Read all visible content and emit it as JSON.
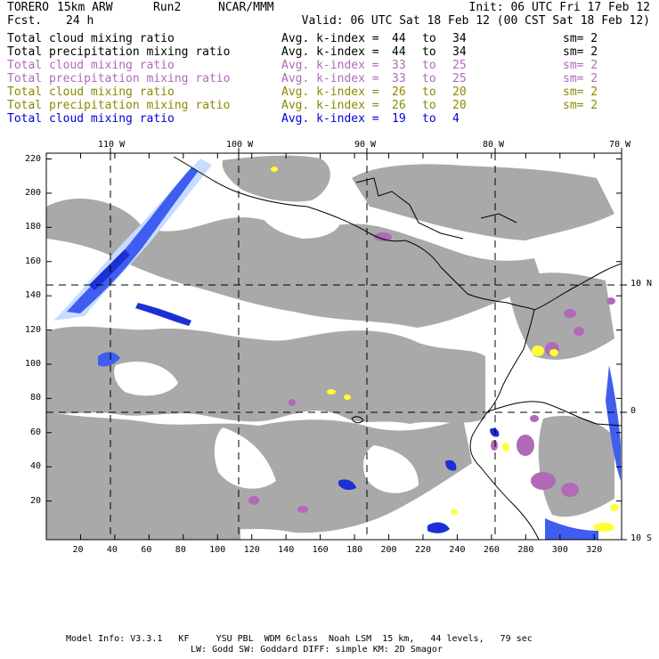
{
  "header": {
    "model": "TORERO",
    "resolution": "15km ARW",
    "run": "Run2",
    "org": "NCAR/MMM",
    "init": "Init: 06 UTC Fri 17 Feb 12",
    "fcst_label": "Fcst.",
    "fcst_value": "24 h",
    "valid": "Valid: 06 UTC Sat 18 Feb 12 (00 CST Sat 18 Feb 12)"
  },
  "legend": [
    {
      "name": "Total cloud mixing ratio",
      "label": "Avg. k-index =",
      "from": "44",
      "to_word": "to",
      "to": "34",
      "sm": "sm= 2",
      "color": "#000000"
    },
    {
      "name": "Total precipitation mixing ratio",
      "label": "Avg. k-index =",
      "from": "44",
      "to_word": "to",
      "to": "34",
      "sm": "sm= 2",
      "color": "#000000"
    },
    {
      "name": "Total cloud mixing ratio",
      "label": "Avg. k-index =",
      "from": "33",
      "to_word": "to",
      "to": "25",
      "sm": "sm= 2",
      "color": "#b06ab8"
    },
    {
      "name": "Total precipitation mixing ratio",
      "label": "Avg. k-index =",
      "from": "33",
      "to_word": "to",
      "to": "25",
      "sm": "sm= 2",
      "color": "#b06ab8"
    },
    {
      "name": "Total cloud mixing ratio",
      "label": "Avg. k-index =",
      "from": "26",
      "to_word": "to",
      "to": "20",
      "sm": "sm= 2",
      "color": "#8a8a00"
    },
    {
      "name": "Total precipitation mixing ratio",
      "label": "Avg. k-index =",
      "from": "26",
      "to_word": "to",
      "to": "20",
      "sm": "sm= 2",
      "color": "#8a8a00"
    },
    {
      "name": "Total cloud mixing ratio",
      "label": "Avg. k-index =",
      "from": "19",
      "to_word": "to",
      "to": "4",
      "sm": "",
      "color": "#0000dd"
    }
  ],
  "axes": {
    "top_lon": [
      "110 W",
      "100 W",
      "90 W",
      "80 W",
      "70 W"
    ],
    "right_lat": [
      "10 N",
      "0",
      "10 S"
    ],
    "left_y": [
      "220",
      "200",
      "180",
      "160",
      "140",
      "120",
      "100",
      "80",
      "60",
      "40",
      "20"
    ],
    "bottom_x": [
      "20",
      "40",
      "60",
      "80",
      "100",
      "120",
      "140",
      "160",
      "180",
      "200",
      "220",
      "240",
      "260",
      "280",
      "300",
      "320"
    ]
  },
  "footer": {
    "line1": "Model Info: V3.3.1   KF     YSU PBL  WDM 6class  Noah LSM  15 km,   44 levels,   79 sec",
    "line2": "LW: Godd SW: Goddard DIFF: simple KM: 2D Smagor"
  },
  "colors": {
    "cloud_gray": "#a9a9a9",
    "blue_dark": "#1a2fd6",
    "blue_light": "#c8dcff",
    "purple": "#b06ab8",
    "yellow": "#ffff33",
    "coast": "#000000"
  }
}
